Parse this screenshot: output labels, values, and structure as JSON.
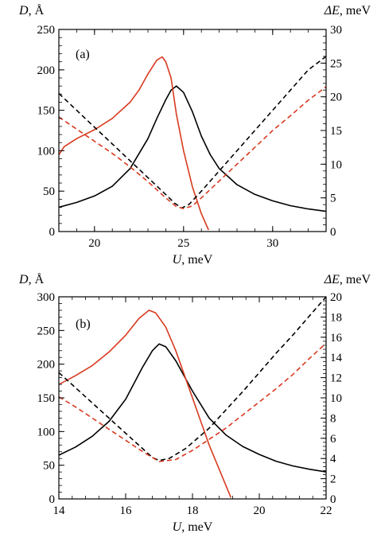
{
  "chart_data": [
    {
      "type": "line",
      "panel_label": "(a)",
      "xlabel": "U, meV",
      "xlabel_var": "U",
      "xlabel_unit": ", meV",
      "ylabel_left": "D, Å",
      "ylabel_left_var": "D",
      "ylabel_left_unit": ", Å",
      "ylabel_right": "ΔE, meV",
      "ylabel_right_var": "ΔE",
      "ylabel_right_unit": ", meV",
      "xlim": [
        18,
        33
      ],
      "ylim_left": [
        0,
        250
      ],
      "ylim_right": [
        0,
        30
      ],
      "xticks": [
        20,
        25,
        30
      ],
      "yticks_left": [
        0,
        50,
        100,
        150,
        200,
        250
      ],
      "yticks_right": [
        0,
        5,
        10,
        15,
        20,
        25,
        30
      ],
      "grid": false,
      "series": [
        {
          "color": "#000000",
          "dash": "solid",
          "axis": "left",
          "points": [
            [
              18,
              30
            ],
            [
              19,
              36
            ],
            [
              20,
              44
            ],
            [
              21,
              56
            ],
            [
              22,
              78
            ],
            [
              23,
              115
            ],
            [
              23.5,
              140
            ],
            [
              24,
              163
            ],
            [
              24.3,
              175
            ],
            [
              24.6,
              180
            ],
            [
              25,
              172
            ],
            [
              25.5,
              148
            ],
            [
              26,
              118
            ],
            [
              26.5,
              95
            ],
            [
              27,
              78
            ],
            [
              28,
              58
            ],
            [
              29,
              46
            ],
            [
              30,
              38
            ],
            [
              31,
              32
            ],
            [
              32,
              28
            ],
            [
              33,
              25
            ]
          ]
        },
        {
          "color": "#d83a1f",
          "dash": "solid",
          "axis": "left",
          "points": [
            [
              18,
              95
            ],
            [
              18.3,
              105
            ],
            [
              19,
              115
            ],
            [
              20,
              126
            ],
            [
              21,
              140
            ],
            [
              22,
              160
            ],
            [
              22.5,
              175
            ],
            [
              23,
              195
            ],
            [
              23.5,
              212
            ],
            [
              23.8,
              216
            ],
            [
              24,
              210
            ],
            [
              24.3,
              190
            ],
            [
              24.6,
              145
            ],
            [
              25,
              100
            ],
            [
              25.5,
              55
            ],
            [
              26,
              22
            ],
            [
              26.4,
              2
            ]
          ]
        },
        {
          "color": "#000000",
          "dash": "dashed",
          "axis": "right",
          "points": [
            [
              18,
              20.5
            ],
            [
              19,
              18
            ],
            [
              20,
              15.5
            ],
            [
              21,
              13
            ],
            [
              22,
              10.5
            ],
            [
              23,
              8
            ],
            [
              24,
              5.5
            ],
            [
              24.5,
              4.2
            ],
            [
              24.9,
              3.5
            ],
            [
              25.3,
              4
            ],
            [
              26,
              6
            ],
            [
              27,
              9
            ],
            [
              28,
              12
            ],
            [
              29,
              15
            ],
            [
              30,
              18
            ],
            [
              31,
              21
            ],
            [
              32,
              24
            ],
            [
              33,
              26
            ]
          ]
        },
        {
          "color": "#d83a1f",
          "dash": "dashed",
          "axis": "right",
          "points": [
            [
              18,
              17
            ],
            [
              19,
              15.2
            ],
            [
              20,
              13.4
            ],
            [
              21,
              11.6
            ],
            [
              22,
              9.6
            ],
            [
              23,
              7.4
            ],
            [
              24,
              5
            ],
            [
              24.6,
              3.7
            ],
            [
              25,
              3.4
            ],
            [
              25.5,
              3.8
            ],
            [
              26,
              5
            ],
            [
              27,
              7.5
            ],
            [
              28,
              10
            ],
            [
              29,
              12.5
            ],
            [
              30,
              15
            ],
            [
              31,
              17.2
            ],
            [
              32,
              19.5
            ],
            [
              33,
              21.5
            ]
          ]
        }
      ]
    },
    {
      "type": "line",
      "panel_label": "(b)",
      "xlabel": "U, meV",
      "xlabel_var": "U",
      "xlabel_unit": ", meV",
      "ylabel_left": "D, Å",
      "ylabel_left_var": "D",
      "ylabel_left_unit": ", Å",
      "ylabel_right": "ΔE, meV",
      "ylabel_right_var": "ΔE",
      "ylabel_right_unit": ", meV",
      "xlim": [
        14,
        22
      ],
      "ylim_left": [
        0,
        300
      ],
      "ylim_right": [
        0,
        20
      ],
      "xticks": [
        14,
        16,
        18,
        20,
        22
      ],
      "yticks_left": [
        0,
        50,
        100,
        150,
        200,
        250,
        300
      ],
      "yticks_right": [
        0,
        2,
        4,
        6,
        8,
        10,
        12,
        14,
        16,
        18,
        20
      ],
      "grid": false,
      "series": [
        {
          "color": "#000000",
          "dash": "solid",
          "axis": "left",
          "points": [
            [
              14,
              65
            ],
            [
              14.5,
              77
            ],
            [
              15,
              93
            ],
            [
              15.5,
              115
            ],
            [
              16,
              148
            ],
            [
              16.5,
              195
            ],
            [
              16.8,
              220
            ],
            [
              17,
              230
            ],
            [
              17.2,
              226
            ],
            [
              17.5,
              205
            ],
            [
              18,
              160
            ],
            [
              18.5,
              120
            ],
            [
              19,
              95
            ],
            [
              19.5,
              78
            ],
            [
              20,
              66
            ],
            [
              20.5,
              56
            ],
            [
              21,
              49
            ],
            [
              21.5,
              44
            ],
            [
              22,
              40
            ]
          ]
        },
        {
          "color": "#d83a1f",
          "dash": "solid",
          "axis": "left",
          "points": [
            [
              14,
              170
            ],
            [
              14.5,
              183
            ],
            [
              15,
              198
            ],
            [
              15.5,
              218
            ],
            [
              16,
              243
            ],
            [
              16.4,
              268
            ],
            [
              16.7,
              280
            ],
            [
              16.9,
              276
            ],
            [
              17.2,
              255
            ],
            [
              17.5,
              220
            ],
            [
              18,
              150
            ],
            [
              18.5,
              80
            ],
            [
              19,
              20
            ],
            [
              19.15,
              2
            ]
          ]
        },
        {
          "color": "#000000",
          "dash": "dashed",
          "axis": "right",
          "points": [
            [
              14,
              12.5
            ],
            [
              14.5,
              11
            ],
            [
              15,
              9.5
            ],
            [
              15.5,
              8
            ],
            [
              16,
              6.5
            ],
            [
              16.5,
              5
            ],
            [
              16.8,
              4.1
            ],
            [
              17,
              3.8
            ],
            [
              17.3,
              4
            ],
            [
              17.8,
              5
            ],
            [
              18.5,
              7
            ],
            [
              19,
              8.8
            ],
            [
              19.5,
              10.6
            ],
            [
              20,
              12.5
            ],
            [
              20.5,
              14.4
            ],
            [
              21,
              16.2
            ],
            [
              21.5,
              18.1
            ],
            [
              22,
              20
            ]
          ]
        },
        {
          "color": "#d83a1f",
          "dash": "dashed",
          "axis": "right",
          "points": [
            [
              14,
              10.1
            ],
            [
              14.5,
              9.1
            ],
            [
              15,
              8
            ],
            [
              15.5,
              6.9
            ],
            [
              16,
              5.8
            ],
            [
              16.5,
              4.7
            ],
            [
              17,
              3.7
            ],
            [
              17.5,
              3.9
            ],
            [
              18,
              4.8
            ],
            [
              18.5,
              5.9
            ],
            [
              19,
              7
            ],
            [
              19.5,
              8.3
            ],
            [
              20,
              9.6
            ],
            [
              20.5,
              10.9
            ],
            [
              21,
              12.3
            ],
            [
              21.5,
              13.9
            ],
            [
              22,
              15.4
            ]
          ]
        }
      ]
    }
  ]
}
